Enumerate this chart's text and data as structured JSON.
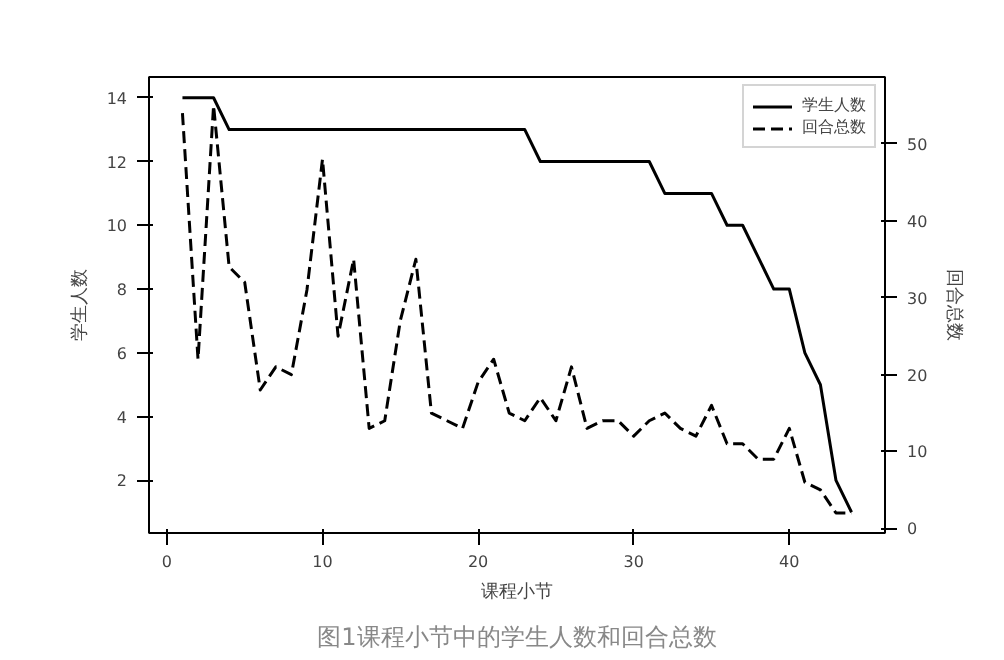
{
  "chart_data": {
    "type": "line",
    "title": "图1课程小节中的学生人数和回合总数",
    "xlabel": "课程小节",
    "ylabel": "学生人数",
    "y2label": "回合总数",
    "x": [
      1,
      2,
      3,
      4,
      5,
      6,
      7,
      8,
      9,
      10,
      11,
      12,
      13,
      14,
      15,
      16,
      17,
      18,
      19,
      20,
      21,
      22,
      23,
      24,
      25,
      26,
      27,
      28,
      29,
      30,
      31,
      32,
      33,
      34,
      35,
      36,
      37,
      38,
      39,
      40,
      41,
      42,
      43,
      44
    ],
    "series": [
      {
        "name": "学生人数",
        "color": "#000000",
        "line_style": "solid",
        "values": [
          14,
          14,
          14,
          13,
          13,
          13,
          13,
          13,
          13,
          13,
          13,
          13,
          13,
          13,
          13,
          13,
          13,
          13,
          13,
          13,
          13,
          13,
          13,
          12,
          12,
          12,
          12,
          12,
          12,
          12,
          12,
          11,
          11,
          11,
          11,
          10,
          10,
          9,
          8,
          8,
          6,
          5,
          2,
          1
        ]
      },
      {
        "name": "回合总数",
        "color": "#000000",
        "line_style": "dashed",
        "axis": "y2",
        "values": [
          54,
          22,
          55,
          34,
          32,
          18,
          21,
          20,
          31,
          48,
          25,
          35,
          13,
          14,
          27,
          35,
          15,
          14,
          13,
          19,
          22,
          15,
          14,
          17,
          14,
          21,
          13,
          14,
          14,
          12,
          14,
          15,
          13,
          12,
          16,
          11,
          11,
          9,
          9,
          13,
          6,
          5,
          2,
          2
        ]
      }
    ],
    "xlim": [
      -1.15,
      46.15
    ],
    "xticks": [
      0,
      10,
      20,
      30,
      40
    ],
    "ylim": [
      0.35,
      14.65
    ],
    "yticks": [
      2,
      4,
      6,
      8,
      10,
      12,
      14
    ],
    "y2lim": [
      -0.6,
      58.7
    ],
    "y2ticks": [
      0,
      10,
      20,
      30,
      40,
      50
    ],
    "grid": false,
    "legend": "top right"
  }
}
